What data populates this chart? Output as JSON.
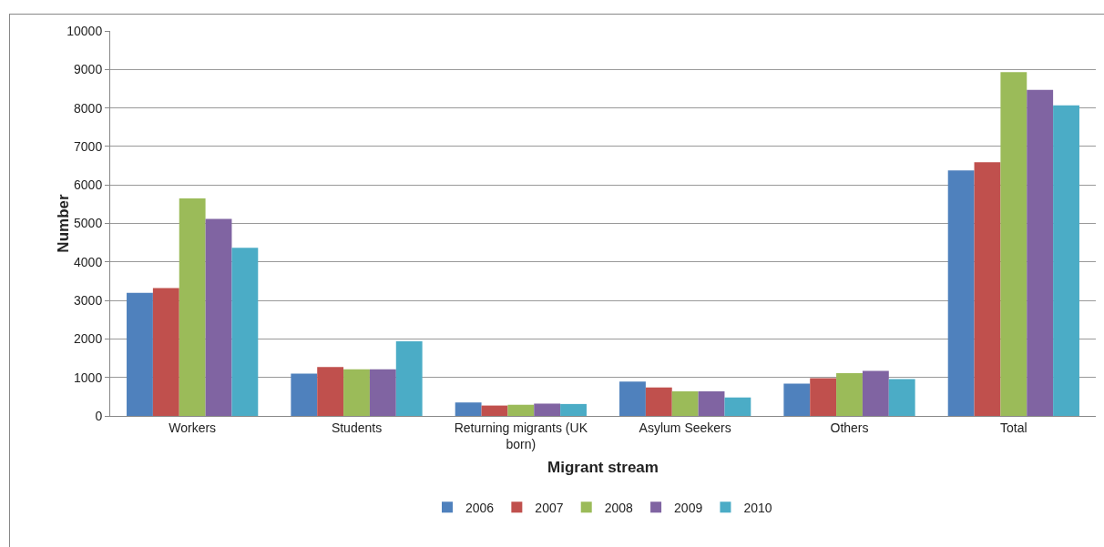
{
  "chart_data": {
    "type": "bar",
    "xlabel": "Migrant stream",
    "ylabel": "Number",
    "categories": [
      "Workers",
      "Students",
      "Returning migrants (UK born)",
      "Asylum Seekers",
      "Others",
      "Total"
    ],
    "series": [
      {
        "name": "2006",
        "color": "#4f81bd",
        "values": [
          3200,
          1100,
          350,
          890,
          840,
          6380
        ]
      },
      {
        "name": "2007",
        "color": "#c0504d",
        "values": [
          3320,
          1270,
          270,
          740,
          980,
          6590
        ]
      },
      {
        "name": "2008",
        "color": "#9bbb59",
        "values": [
          5650,
          1210,
          290,
          640,
          1110,
          8930
        ]
      },
      {
        "name": "2009",
        "color": "#8064a2",
        "values": [
          5120,
          1210,
          320,
          640,
          1170,
          8470
        ]
      },
      {
        "name": "2010",
        "color": "#4bacc6",
        "values": [
          4370,
          1940,
          310,
          480,
          960,
          8070
        ]
      }
    ],
    "ylim": [
      0,
      10000
    ],
    "yticks": [
      0,
      1000,
      2000,
      3000,
      4000,
      5000,
      6000,
      7000,
      8000,
      9000,
      10000
    ],
    "grid": "y",
    "legend": "bottom"
  }
}
